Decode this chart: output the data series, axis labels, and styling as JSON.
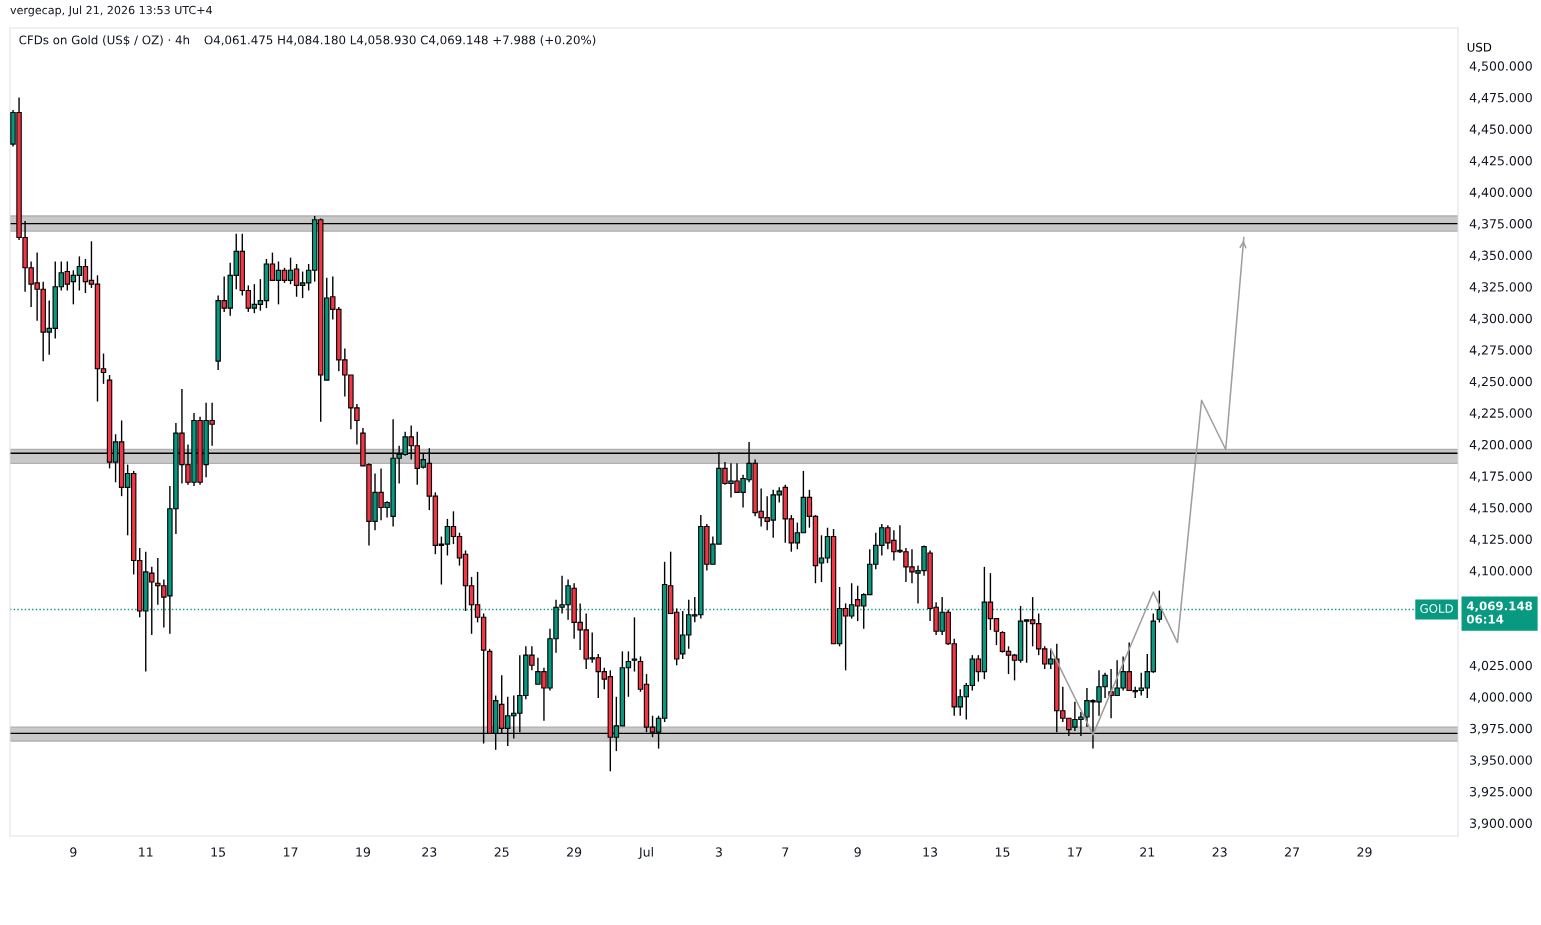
{
  "chart_data": {
    "type": "candlestick",
    "title": "CFDs on Gold (US$ / OZ) · 4h",
    "subtitle": "O4,061.475 H4,084.180 L4,058.930 C4,069.148 +7.988 (+0.20%)",
    "ylabel": "USD",
    "annotations": [
      "vergecap, Jul 21, 2026 13:53 UTC+4",
      "4,069.148",
      "06:14"
    ],
    "categories": [
      null,
      null,
      null,
      null,
      null,
      null,
      null,
      null,
      null,
      null,
      "9",
      null,
      null,
      null,
      null,
      null,
      null,
      null,
      null,
      null,
      null,
      null,
      "11",
      null,
      null,
      null,
      null,
      null,
      null,
      null,
      null,
      null,
      null,
      null,
      "15",
      null,
      null,
      null,
      null,
      null,
      null,
      null,
      null,
      null,
      null,
      null,
      "17",
      null,
      null,
      null,
      null,
      null,
      null,
      null,
      null,
      null,
      null,
      null,
      "19",
      null,
      null,
      null,
      null,
      null,
      null,
      null,
      null,
      null,
      null,
      "23",
      null,
      null,
      null,
      null,
      null,
      null,
      null,
      null,
      null,
      null,
      null,
      "25",
      null,
      null,
      null,
      null,
      null,
      null,
      null,
      null,
      null,
      null,
      null,
      "29",
      null,
      null,
      null,
      null,
      null,
      null,
      null,
      null,
      null,
      null,
      null,
      "Jul",
      null,
      null,
      null,
      null,
      null,
      null,
      null,
      null,
      null,
      null,
      null,
      "3",
      null,
      null,
      null,
      null,
      null,
      null,
      null,
      null,
      null,
      null,
      "7",
      null,
      null,
      null,
      null,
      null,
      null,
      null,
      null,
      null,
      null,
      null,
      "9",
      null,
      null,
      null,
      null,
      null,
      null,
      null,
      null,
      null,
      null,
      null,
      "13",
      null,
      null,
      null,
      null,
      null,
      null,
      null,
      null,
      null,
      null,
      null,
      "15",
      null,
      null,
      null,
      null,
      null,
      null,
      null,
      null,
      null,
      null,
      null,
      "17",
      null,
      null,
      null,
      null,
      null,
      null,
      null,
      null,
      null,
      null,
      null,
      "21",
      null,
      null,
      null,
      null,
      null,
      null,
      null,
      null,
      null,
      null,
      null,
      "23",
      null,
      null,
      null,
      null,
      null,
      null,
      null,
      null,
      null,
      null,
      null,
      "27",
      null,
      null,
      null,
      null,
      null,
      null,
      null,
      null,
      null,
      null,
      null,
      "29",
      null,
      null,
      null,
      null,
      null,
      null,
      null,
      null,
      null,
      null,
      null,
      null,
      null,
      null,
      null
    ],
    "ohlc": [
      [
        4438,
        4465,
        4436,
        4463
      ],
      [
        4463,
        4475,
        4362,
        4364
      ],
      [
        4364,
        4377,
        4321,
        4340
      ],
      [
        4340,
        4345,
        4309,
        4327
      ],
      [
        4328,
        4352,
        4298,
        4323
      ],
      [
        4323,
        4329,
        4266,
        4289
      ],
      [
        4289,
        4314,
        4271,
        4292
      ],
      [
        4292,
        4345,
        4284,
        4325
      ],
      [
        4325,
        4345,
        4322,
        4336
      ],
      [
        4337,
        4345,
        4322,
        4327
      ],
      [
        4329,
        4338,
        4311,
        4334
      ],
      [
        4334,
        4349,
        4322,
        4341
      ],
      [
        4341,
        4347,
        4320,
        4329
      ],
      [
        4330,
        4361,
        4324,
        4327
      ],
      [
        4327,
        4334,
        4234,
        4260
      ],
      [
        4260,
        4272,
        4248,
        4257
      ],
      [
        4251,
        4255,
        4181,
        4186
      ],
      [
        4186,
        4208,
        4170,
        4202
      ],
      [
        4202,
        4219,
        4159,
        4166
      ],
      [
        4166,
        4184,
        4128,
        4177
      ],
      [
        4177,
        4179,
        4097,
        4108
      ],
      [
        4108,
        4118,
        4063,
        4068
      ],
      [
        4068,
        4115,
        4020,
        4099
      ],
      [
        4098,
        4103,
        4049,
        4091
      ],
      [
        4090,
        4110,
        4073,
        4088
      ],
      [
        4088,
        4093,
        4055,
        4079
      ],
      [
        4080,
        4167,
        4050,
        4149
      ],
      [
        4149,
        4217,
        4129,
        4209
      ],
      [
        4209,
        4244,
        4169,
        4184
      ],
      [
        4184,
        4200,
        4168,
        4170
      ],
      [
        4170,
        4225,
        4167,
        4219
      ],
      [
        4219,
        4222,
        4168,
        4170
      ],
      [
        4184,
        4233,
        4174,
        4219
      ],
      [
        4219,
        4233,
        4199,
        4216
      ],
      [
        4266,
        4318,
        4259,
        4314
      ],
      [
        4314,
        4333,
        4305,
        4308
      ],
      [
        4308,
        4344,
        4302,
        4334
      ],
      [
        4334,
        4367,
        4323,
        4353
      ],
      [
        4353,
        4367,
        4318,
        4322
      ],
      [
        4322,
        4326,
        4305,
        4308
      ],
      [
        4308,
        4327,
        4304,
        4311
      ],
      [
        4311,
        4331,
        4306,
        4314
      ],
      [
        4314,
        4347,
        4308,
        4343
      ],
      [
        4343,
        4352,
        4330,
        4330
      ],
      [
        4330,
        4345,
        4311,
        4338
      ],
      [
        4338,
        4340,
        4328,
        4330
      ],
      [
        4330,
        4348,
        4327,
        4338
      ],
      [
        4339,
        4343,
        4317,
        4326
      ],
      [
        4326,
        4337,
        4316,
        4328
      ],
      [
        4328,
        4343,
        4322,
        4338
      ],
      [
        4338,
        4381,
        4329,
        4378
      ],
      [
        4378,
        4379,
        4218,
        4255
      ],
      [
        4251,
        4332,
        4251,
        4316
      ],
      [
        4317,
        4333,
        4299,
        4307
      ],
      [
        4307,
        4309,
        4258,
        4267
      ],
      [
        4267,
        4276,
        4238,
        4255
      ],
      [
        4255,
        4255,
        4212,
        4229
      ],
      [
        4229,
        4232,
        4200,
        4219
      ],
      [
        4209,
        4213,
        4183,
        4183
      ],
      [
        4184,
        4185,
        4120,
        4139
      ],
      [
        4139,
        4177,
        4132,
        4162
      ],
      [
        4162,
        4181,
        4140,
        4150
      ],
      [
        4150,
        4155,
        4142,
        4154
      ],
      [
        4143,
        4220,
        4135,
        4189
      ],
      [
        4189,
        4199,
        4169,
        4192
      ],
      [
        4192,
        4210,
        4191,
        4206
      ],
      [
        4206,
        4215,
        4188,
        4199
      ],
      [
        4199,
        4210,
        4168,
        4181
      ],
      [
        4182,
        4193,
        4181,
        4188
      ],
      [
        4185,
        4197,
        4148,
        4159
      ],
      [
        4159,
        4162,
        4113,
        4120
      ],
      [
        4120,
        4127,
        4089,
        4121
      ],
      [
        4121,
        4141,
        4112,
        4135
      ],
      [
        4135,
        4147,
        4121,
        4127
      ],
      [
        4127,
        4130,
        4104,
        4110
      ],
      [
        4113,
        4116,
        4068,
        4088
      ],
      [
        4088,
        4095,
        4050,
        4073
      ],
      [
        4073,
        4099,
        4059,
        4063
      ],
      [
        4063,
        4066,
        3963,
        4037
      ],
      [
        4036,
        4038,
        3971,
        3971
      ],
      [
        3971,
        4001,
        3958,
        3997
      ],
      [
        3994,
        4017,
        3971,
        3975
      ],
      [
        3975,
        4000,
        3961,
        3985
      ],
      [
        3985,
        4001,
        3967,
        3987
      ],
      [
        3987,
        4033,
        3972,
        4001
      ],
      [
        4001,
        4040,
        3998,
        4033
      ],
      [
        4033,
        4040,
        4021,
        4025
      ],
      [
        4010,
        4031,
        4010,
        4020
      ],
      [
        4020,
        4023,
        3981,
        4007
      ],
      [
        4007,
        4054,
        4005,
        4046
      ],
      [
        4046,
        4077,
        4035,
        4071
      ],
      [
        4071,
        4096,
        4066,
        4073
      ],
      [
        4073,
        4093,
        4061,
        4088
      ],
      [
        4086,
        4090,
        4046,
        4059
      ],
      [
        4059,
        4074,
        4037,
        4053
      ],
      [
        4053,
        4066,
        4022,
        4030
      ],
      [
        4030,
        4051,
        4027,
        4031
      ],
      [
        4031,
        4034,
        3999,
        4020
      ],
      [
        4020,
        4023,
        4006,
        4014
      ],
      [
        4016,
        4021,
        3941,
        3968
      ],
      [
        3968,
        4000,
        3957,
        3977
      ],
      [
        3977,
        4036,
        3977,
        4023
      ],
      [
        4023,
        4036,
        4000,
        4028
      ],
      [
        4029,
        4063,
        4020,
        4030
      ],
      [
        4028,
        4032,
        4004,
        4006
      ],
      [
        4010,
        4018,
        3972,
        3976
      ],
      [
        3976,
        3985,
        3968,
        3972
      ],
      [
        3972,
        3985,
        3959,
        3983
      ],
      [
        3983,
        4107,
        3980,
        4089
      ],
      [
        4088,
        4115,
        4066,
        4066
      ],
      [
        4067,
        4070,
        4025,
        4030
      ],
      [
        4034,
        4068,
        4030,
        4049
      ],
      [
        4049,
        4077,
        4038,
        4065
      ],
      [
        4064,
        4079,
        4059,
        4065
      ],
      [
        4065,
        4144,
        4062,
        4135
      ],
      [
        4135,
        4137,
        4100,
        4105
      ],
      [
        4105,
        4127,
        4105,
        4121
      ],
      [
        4121,
        4194,
        4121,
        4181
      ],
      [
        4181,
        4186,
        4168,
        4169
      ],
      [
        4169,
        4185,
        4158,
        4171
      ],
      [
        4171,
        4185,
        4162,
        4162
      ],
      [
        4162,
        4176,
        4150,
        4173
      ],
      [
        4172,
        4202,
        4170,
        4185
      ],
      [
        4185,
        4188,
        4143,
        4146
      ],
      [
        4147,
        4165,
        4135,
        4142
      ],
      [
        4142,
        4159,
        4132,
        4139
      ],
      [
        4140,
        4164,
        4126,
        4160
      ],
      [
        4160,
        4166,
        4154,
        4163
      ],
      [
        4166,
        4168,
        4122,
        4141
      ],
      [
        4141,
        4144,
        4115,
        4122
      ],
      [
        4122,
        4138,
        4117,
        4130
      ],
      [
        4130,
        4179,
        4130,
        4158
      ],
      [
        4158,
        4164,
        4134,
        4143
      ],
      [
        4143,
        4144,
        4090,
        4104
      ],
      [
        4106,
        4128,
        4091,
        4110
      ],
      [
        4110,
        4134,
        4106,
        4127
      ],
      [
        4127,
        4133,
        4042,
        4042
      ],
      [
        4042,
        4087,
        4040,
        4070
      ],
      [
        4070,
        4074,
        4021,
        4064
      ],
      [
        4064,
        4090,
        4062,
        4073
      ],
      [
        4077,
        4088,
        4060,
        4072
      ],
      [
        4072,
        4082,
        4054,
        4081
      ],
      [
        4081,
        4117,
        4081,
        4105
      ],
      [
        4105,
        4130,
        4101,
        4120
      ],
      [
        4120,
        4137,
        4112,
        4134
      ],
      [
        4134,
        4136,
        4117,
        4122
      ],
      [
        4124,
        4132,
        4108,
        4115
      ],
      [
        4116,
        4136,
        4114,
        4115
      ],
      [
        4115,
        4118,
        4091,
        4103
      ],
      [
        4103,
        4117,
        4090,
        4099
      ],
      [
        4098,
        4104,
        4074,
        4100
      ],
      [
        4100,
        4120,
        4096,
        4119
      ],
      [
        4114,
        4116,
        4060,
        4070
      ],
      [
        4071,
        4075,
        4049,
        4052
      ],
      [
        4052,
        4079,
        4049,
        4067
      ],
      [
        4067,
        4069,
        4041,
        4042
      ],
      [
        4042,
        4046,
        3985,
        3992
      ],
      [
        3992,
        4006,
        3985,
        4000
      ],
      [
        4000,
        4011,
        3982,
        4009
      ],
      [
        4009,
        4033,
        4005,
        4030
      ],
      [
        4030,
        4033,
        4012,
        4020
      ],
      [
        4020,
        4103,
        4014,
        4075
      ],
      [
        4075,
        4098,
        4053,
        4062
      ],
      [
        4062,
        4062,
        4041,
        4052
      ],
      [
        4051,
        4052,
        4035,
        4036
      ],
      [
        4036,
        4040,
        4018,
        4033
      ],
      [
        4033,
        4034,
        4013,
        4029
      ],
      [
        4029,
        4072,
        4027,
        4060
      ],
      [
        4060,
        4061,
        4027,
        4061
      ],
      [
        4061,
        4079,
        4040,
        4058
      ],
      [
        4058,
        4066,
        4033,
        4038
      ],
      [
        4038,
        4040,
        4022,
        4026
      ],
      [
        4026,
        4038,
        4022,
        4030
      ],
      [
        4030,
        4042,
        3972,
        3989
      ],
      [
        3989,
        4008,
        3980,
        3983
      ],
      [
        3983,
        3983,
        3969,
        3974
      ],
      [
        3976,
        3996,
        3973,
        3982
      ],
      [
        3982,
        3988,
        3969,
        3984
      ],
      [
        3984,
        4007,
        3976,
        3997
      ],
      [
        3997,
        3998,
        3959,
        3996
      ],
      [
        3996,
        4021,
        3985,
        4008
      ],
      [
        4008,
        4019,
        3999,
        4017
      ],
      [
        4004,
        4022,
        3983,
        4001
      ],
      [
        4001,
        4029,
        4001,
        4007
      ],
      [
        4007,
        4032,
        4005,
        4020
      ],
      [
        4020,
        4043,
        4005,
        4005
      ],
      [
        4004,
        4008,
        3999,
        4005
      ],
      [
        4005,
        4019,
        4001,
        4007
      ],
      [
        4007,
        4034,
        3999,
        4020
      ],
      [
        4020,
        4066,
        4019,
        4060
      ],
      [
        4061.475,
        4084.18,
        4058.93,
        4069.148
      ],
      null,
      null,
      null,
      null,
      null,
      null,
      null,
      null,
      null,
      null,
      null,
      null,
      null,
      null,
      null,
      null,
      null,
      null,
      null,
      null,
      null,
      null,
      null,
      null,
      null,
      null,
      null,
      null,
      null,
      null,
      null,
      null,
      null,
      null,
      null,
      null,
      null,
      null,
      null,
      null,
      null,
      null,
      null,
      null,
      null,
      null,
      null,
      null,
      null
    ],
    "colors": [
      "#089981",
      "#f23645",
      "#f23645",
      "#f23645",
      "#f23645",
      "#f23645",
      "#089981",
      "#089981",
      "#089981",
      "#f23645",
      "#089981",
      "#089981",
      "#f23645",
      "#f23645",
      "#f23645",
      "#f23645",
      "#f23645",
      "#089981",
      "#f23645",
      "#089981",
      "#f23645",
      "#f23645",
      "#089981",
      "#f23645",
      "#f23645",
      "#f23645",
      "#089981",
      "#089981",
      "#f23645",
      "#f23645",
      "#089981",
      "#f23645",
      "#089981",
      "#f23645",
      "#089981",
      "#f23645",
      "#089981",
      "#089981",
      "#f23645",
      "#f23645",
      "#089981",
      "#089981",
      "#089981",
      "#f23645",
      "#089981",
      "#f23645",
      "#089981",
      "#f23645",
      "#089981",
      "#089981",
      "#089981",
      "#f23645",
      "#089981",
      "#f23645",
      "#f23645",
      "#f23645",
      "#f23645",
      "#f23645",
      "#f23645",
      "#f23645",
      "#089981",
      "#f23645",
      "#089981",
      "#089981",
      "#089981",
      "#089981",
      "#f23645",
      "#f23645",
      "#089981",
      "#f23645",
      "#f23645",
      "#089981",
      "#089981",
      "#f23645",
      "#f23645",
      "#f23645",
      "#f23645",
      "#f23645",
      "#f23645",
      "#f23645",
      "#089981",
      "#f23645",
      "#089981",
      "#089981",
      "#089981",
      "#089981",
      "#f23645",
      "#089981",
      "#f23645",
      "#089981",
      "#089981",
      "#089981",
      "#089981",
      "#f23645",
      "#f23645",
      "#f23645",
      "#089981",
      "#f23645",
      "#f23645",
      "#f23645",
      "#089981",
      "#089981",
      "#089981",
      "#089981",
      "#f23645",
      "#f23645",
      "#f23645",
      "#089981",
      "#089981",
      "#f23645",
      "#f23645",
      "#089981",
      "#089981",
      "#089981",
      "#089981",
      "#f23645",
      "#089981",
      "#089981",
      "#f23645",
      "#089981",
      "#f23645",
      "#089981",
      "#089981",
      "#f23645",
      "#f23645",
      "#f23645",
      "#089981",
      "#089981",
      "#f23645",
      "#f23645",
      "#089981",
      "#089981",
      "#f23645",
      "#f23645",
      "#089981",
      "#089981",
      "#f23645",
      "#089981",
      "#f23645",
      "#089981",
      "#f23645",
      "#089981",
      "#089981",
      "#089981",
      "#089981",
      "#f23645",
      "#f23645",
      "#f23645",
      "#f23645",
      "#f23645",
      "#089981",
      "#089981",
      "#f23645",
      "#f23645",
      "#089981",
      "#f23645",
      "#f23645",
      "#089981",
      "#089981",
      "#089981",
      "#f23645",
      "#089981",
      "#f23645",
      "#f23645",
      "#f23645",
      "#f23645",
      "#f23645",
      "#089981",
      "#089981",
      "#f23645",
      "#f23645",
      "#f23645",
      "#089981",
      "#f23645",
      "#f23645",
      "#f23645",
      "#089981",
      "#089981",
      "#089981",
      "#f23645",
      "#089981",
      "#089981",
      "#f23645",
      "#089981",
      "#089981",
      "#f23645",
      "#089981",
      "#089981",
      "#089981",
      "#089981",
      "#089981",
      null,
      null,
      null,
      null,
      null,
      null,
      null,
      null,
      null,
      null,
      null,
      null,
      null,
      null,
      null,
      null,
      null,
      null,
      null,
      null,
      null,
      null,
      null,
      null,
      null,
      null,
      null,
      null,
      null,
      null,
      null,
      null,
      null,
      null,
      null,
      null,
      null,
      null,
      null,
      null,
      null,
      null,
      null,
      null,
      null,
      null,
      null,
      null,
      null
    ],
    "series": [
      {
        "type": "line",
        "color": "#9e9e9e",
        "values": [
          null,
          null,
          null,
          null,
          null,
          null,
          null,
          null,
          null,
          null,
          null,
          null,
          null,
          null,
          null,
          null,
          null,
          null,
          null,
          null,
          null,
          null,
          null,
          null,
          null,
          null,
          null,
          null,
          null,
          null,
          null,
          null,
          null,
          null,
          null,
          null,
          null,
          null,
          null,
          null,
          null,
          null,
          null,
          null,
          null,
          null,
          null,
          null,
          null,
          null,
          null,
          null,
          null,
          null,
          null,
          null,
          null,
          null,
          null,
          null,
          null,
          null,
          null,
          null,
          null,
          null,
          null,
          null,
          null,
          null,
          null,
          null,
          null,
          null,
          null,
          null,
          null,
          null,
          null,
          null,
          null,
          null,
          null,
          null,
          null,
          null,
          null,
          null,
          null,
          null,
          null,
          null,
          null,
          null,
          null,
          null,
          null,
          null,
          null,
          null,
          null,
          null,
          null,
          null,
          null,
          null,
          null,
          null,
          null,
          null,
          null,
          null,
          null,
          null,
          null,
          null,
          null,
          null,
          null,
          null,
          null,
          null,
          null,
          null,
          null,
          null,
          null,
          null,
          null,
          null,
          null,
          null,
          null,
          null,
          null,
          null,
          null,
          null,
          null,
          null,
          null,
          null,
          null,
          null,
          null,
          null,
          null,
          null,
          null,
          null,
          null,
          null,
          null,
          null,
          null,
          null,
          null,
          null,
          null,
          null,
          null,
          null,
          null,
          null,
          null,
          null,
          null,
          null,
          null,
          null,
          null,
          null,
          4038,
          null,
          null,
          null,
          null,
          null,
          null,
          3970,
          null,
          null,
          null,
          null,
          null,
          null,
          null,
          null,
          null,
          4083,
          null,
          null,
          null,
          4043,
          null,
          null,
          null,
          4235,
          null,
          null,
          null,
          4196,
          null,
          null,
          4364,
          null,
          null,
          null,
          null,
          null,
          null,
          null,
          null,
          null,
          null,
          null,
          null,
          null,
          null,
          null,
          null,
          null,
          null,
          null,
          null,
          null,
          null,
          null,
          null,
          null,
          null,
          null,
          null,
          null,
          null,
          null,
          null,
          null,
          null,
          null
        ]
      }
    ],
    "ylim": [
      3889.7,
      4530
    ],
    "yticks": [
      {
        "value": 3900,
        "label": "3,900.000"
      },
      {
        "value": 3925,
        "label": "3,925.000"
      },
      {
        "value": 3950,
        "label": "3,950.000"
      },
      {
        "value": 3975,
        "label": "3,975.000"
      },
      {
        "value": 4000,
        "label": "4,000.000"
      },
      {
        "value": 4025,
        "label": "4,025.000"
      },
      {
        "value": 4100,
        "label": "4,100.000"
      },
      {
        "value": 4125,
        "label": "4,125.000"
      },
      {
        "value": 4150,
        "label": "4,150.000"
      },
      {
        "value": 4175,
        "label": "4,175.000"
      },
      {
        "value": 4200,
        "label": "4,200.000"
      },
      {
        "value": 4225,
        "label": "4,225.000"
      },
      {
        "value": 4250,
        "label": "4,250.000"
      },
      {
        "value": 4275,
        "label": "4,275.000"
      },
      {
        "value": 4300,
        "label": "4,300.000"
      },
      {
        "value": 4325,
        "label": "4,325.000"
      },
      {
        "value": 4350,
        "label": "4,350.000"
      },
      {
        "value": 4375,
        "label": "4,375.000"
      },
      {
        "value": 4400,
        "label": "4,400.000"
      },
      {
        "value": 4425,
        "label": "4,425.000"
      },
      {
        "value": 4450,
        "label": "4,450.000"
      },
      {
        "value": 4475,
        "label": "4,475.000"
      },
      {
        "value": 4500,
        "label": "4,500.000"
      }
    ],
    "bands": [
      {
        "axis": "y",
        "from": 4369,
        "to": 4381,
        "color": "#c8c8c8"
      },
      {
        "axis": "y",
        "from": 4185,
        "to": 4196,
        "color": "#c8c8c8"
      },
      {
        "axis": "y",
        "from": 3965,
        "to": 3976,
        "color": "#c8c8c8"
      }
    ],
    "ref_lines": [
      {
        "axis": "y",
        "value": 4375,
        "color": "#000000",
        "line_style": "solid"
      },
      {
        "axis": "y",
        "value": 4193,
        "color": "#000000",
        "line_style": "solid"
      },
      {
        "axis": "y",
        "value": 3971,
        "color": "#000000",
        "line_style": "solid"
      },
      {
        "axis": "y",
        "value": 4069.148,
        "label": "GOLD",
        "color": "#089981",
        "line_style": "dotted"
      }
    ],
    "grid": false
  }
}
